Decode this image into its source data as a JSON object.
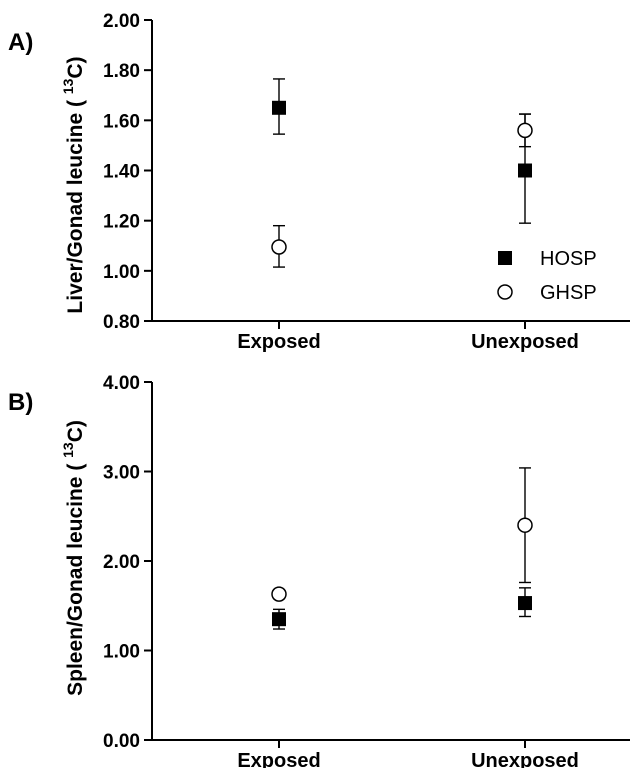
{
  "chart_data": [
    {
      "type": "scatter",
      "panel_label": "A)",
      "ylabel": "Liver/Gonad leucine (¹³C)",
      "ylabel_prefix": "Liver/Gonad leucine ( ",
      "ylabel_sup": "13",
      "ylabel_suffix": "C)",
      "categories": [
        "Exposed",
        "Unexposed"
      ],
      "ylim": [
        0.8,
        2.0
      ],
      "yticks": [
        "0.80",
        "1.00",
        "1.20",
        "1.40",
        "1.60",
        "1.80",
        "2.00"
      ],
      "series": [
        {
          "name": "HOSP",
          "marker": "filled-square",
          "values": [
            1.65,
            1.4
          ],
          "err_low": [
            1.545,
            1.19
          ],
          "err_high": [
            1.765,
            1.625
          ]
        },
        {
          "name": "GHSP",
          "marker": "open-circle",
          "values": [
            1.095,
            1.56
          ],
          "err_low": [
            1.015,
            1.495
          ],
          "err_high": [
            1.18,
            1.625
          ]
        }
      ],
      "legend": "bottom-right",
      "grid": false
    },
    {
      "type": "scatter",
      "panel_label": "B)",
      "ylabel": "Spleen/Gonad leucine (¹³C)",
      "ylabel_prefix": "Spleen/Gonad leucine ( ",
      "ylabel_sup": "13",
      "ylabel_suffix": "C)",
      "categories": [
        "Exposed",
        "Unexposed"
      ],
      "ylim": [
        0.0,
        4.0
      ],
      "yticks": [
        "0.00",
        "1.00",
        "2.00",
        "3.00",
        "4.00"
      ],
      "series": [
        {
          "name": "HOSP",
          "marker": "filled-square",
          "values": [
            1.35,
            1.53
          ],
          "err_low": [
            1.24,
            1.38
          ],
          "err_high": [
            1.46,
            1.7
          ]
        },
        {
          "name": "GHSP",
          "marker": "open-circle",
          "values": [
            1.63,
            2.4
          ],
          "err_low": [
            1.58,
            1.76
          ],
          "err_high": [
            1.68,
            3.04
          ]
        }
      ],
      "grid": false
    }
  ],
  "colors": {
    "marker": "#000000",
    "background": "#ffffff"
  }
}
